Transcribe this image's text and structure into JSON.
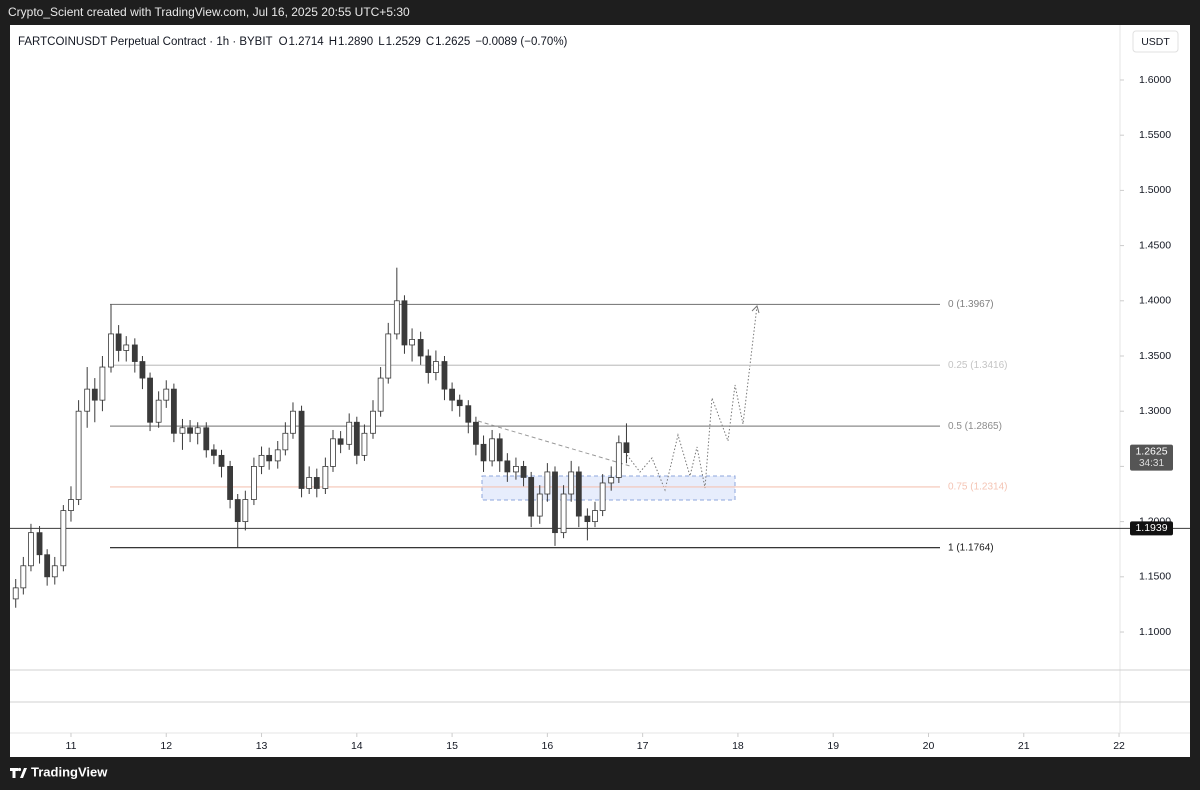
{
  "credit": "Crypto_Scient created with TradingView.com, Jul 16, 2025 20:55 UTC+5:30",
  "brand": "TradingView",
  "chart_data": {
    "type": "candlestick",
    "symbol": "FARTCOINUSDT Perpetual Contract · 1h · BYBIT",
    "header_values": [
      {
        "label": "O",
        "text": "1.2714"
      },
      {
        "label": "H",
        "text": "1.2890"
      },
      {
        "label": "L",
        "text": "1.2529"
      },
      {
        "label": "C",
        "text": "1.2625"
      }
    ],
    "change": "−0.0089 (−0.70%)",
    "currency": "USDT",
    "up_color": "#ffffff",
    "down_color": "#3a3a3a",
    "wick_color": "#3a3a3a",
    "x": [
      10.42,
      10.5,
      10.58,
      10.67,
      10.75,
      10.83,
      10.92,
      11,
      11.08,
      11.17,
      11.25,
      11.33,
      11.42,
      11.5,
      11.58,
      11.67,
      11.75,
      11.83,
      11.92,
      12,
      12.08,
      12.17,
      12.25,
      12.33,
      12.42,
      12.5,
      12.58,
      12.67,
      12.75,
      12.83,
      12.92,
      13,
      13.08,
      13.17,
      13.25,
      13.33,
      13.42,
      13.5,
      13.58,
      13.67,
      13.75,
      13.83,
      13.92,
      14,
      14.08,
      14.17,
      14.25,
      14.33,
      14.42,
      14.5,
      14.58,
      14.67,
      14.75,
      14.83,
      14.92,
      15,
      15.08,
      15.17,
      15.25,
      15.33,
      15.42,
      15.5,
      15.58,
      15.67,
      15.75,
      15.83,
      15.92,
      16,
      16.08,
      16.17,
      16.25,
      16.33,
      16.42,
      16.5,
      16.58,
      16.67,
      16.75,
      16.83
    ],
    "open": [
      1.13,
      1.14,
      1.16,
      1.19,
      1.17,
      1.15,
      1.16,
      1.21,
      1.22,
      1.3,
      1.32,
      1.31,
      1.34,
      1.37,
      1.355,
      1.36,
      1.345,
      1.33,
      1.29,
      1.31,
      1.32,
      1.28,
      1.285,
      1.28,
      1.285,
      1.265,
      1.26,
      1.25,
      1.22,
      1.2,
      1.22,
      1.25,
      1.26,
      1.255,
      1.265,
      1.28,
      1.3,
      1.23,
      1.24,
      1.23,
      1.25,
      1.275,
      1.27,
      1.29,
      1.26,
      1.28,
      1.3,
      1.33,
      1.37,
      1.4,
      1.36,
      1.365,
      1.35,
      1.335,
      1.345,
      1.32,
      1.31,
      1.305,
      1.29,
      1.27,
      1.255,
      1.275,
      1.255,
      1.245,
      1.25,
      1.24,
      1.205,
      1.225,
      1.245,
      1.19,
      1.225,
      1.245,
      1.205,
      1.2,
      1.21,
      1.235,
      1.24,
      1.2714
    ],
    "high": [
      1.148,
      1.168,
      1.198,
      1.196,
      1.175,
      1.168,
      1.215,
      1.232,
      1.31,
      1.34,
      1.33,
      1.35,
      1.3967,
      1.378,
      1.368,
      1.366,
      1.35,
      1.335,
      1.318,
      1.328,
      1.325,
      1.293,
      1.292,
      1.29,
      1.29,
      1.27,
      1.265,
      1.255,
      1.225,
      1.228,
      1.258,
      1.268,
      1.267,
      1.273,
      1.29,
      1.308,
      1.305,
      1.25,
      1.248,
      1.258,
      1.283,
      1.282,
      1.298,
      1.295,
      1.288,
      1.31,
      1.34,
      1.38,
      1.43,
      1.405,
      1.375,
      1.372,
      1.356,
      1.355,
      1.35,
      1.326,
      1.315,
      1.31,
      1.295,
      1.278,
      1.283,
      1.28,
      1.262,
      1.258,
      1.255,
      1.245,
      1.233,
      1.253,
      1.25,
      1.233,
      1.255,
      1.25,
      1.212,
      1.218,
      1.243,
      1.25,
      1.278,
      1.289
    ],
    "low": [
      1.122,
      1.134,
      1.155,
      1.162,
      1.142,
      1.143,
      1.155,
      1.2,
      1.215,
      1.285,
      1.29,
      1.3,
      1.335,
      1.345,
      1.345,
      1.335,
      1.32,
      1.282,
      1.285,
      1.303,
      1.272,
      1.265,
      1.272,
      1.27,
      1.258,
      1.252,
      1.24,
      1.212,
      1.1764,
      1.192,
      1.215,
      1.243,
      1.247,
      1.248,
      1.26,
      1.275,
      1.222,
      1.225,
      1.222,
      1.225,
      1.245,
      1.262,
      1.265,
      1.252,
      1.255,
      1.275,
      1.295,
      1.325,
      1.365,
      1.352,
      1.345,
      1.342,
      1.325,
      1.328,
      1.31,
      1.3,
      1.295,
      1.28,
      1.26,
      1.245,
      1.25,
      1.245,
      1.236,
      1.238,
      1.232,
      1.195,
      1.198,
      1.218,
      1.178,
      1.185,
      1.218,
      1.195,
      1.183,
      1.195,
      1.205,
      1.228,
      1.235,
      1.2529
    ],
    "close": [
      1.14,
      1.16,
      1.19,
      1.17,
      1.15,
      1.16,
      1.21,
      1.22,
      1.3,
      1.32,
      1.31,
      1.34,
      1.37,
      1.355,
      1.36,
      1.345,
      1.33,
      1.29,
      1.31,
      1.32,
      1.28,
      1.285,
      1.28,
      1.285,
      1.265,
      1.26,
      1.25,
      1.22,
      1.2,
      1.22,
      1.25,
      1.26,
      1.255,
      1.265,
      1.28,
      1.3,
      1.23,
      1.24,
      1.23,
      1.25,
      1.275,
      1.27,
      1.29,
      1.26,
      1.28,
      1.3,
      1.33,
      1.37,
      1.4,
      1.36,
      1.365,
      1.35,
      1.335,
      1.345,
      1.32,
      1.31,
      1.305,
      1.29,
      1.27,
      1.255,
      1.275,
      1.255,
      1.245,
      1.25,
      1.24,
      1.205,
      1.225,
      1.245,
      1.19,
      1.225,
      1.245,
      1.205,
      1.2,
      1.21,
      1.235,
      1.24,
      1.2714,
      1.2625
    ],
    "xlim": [
      10.36,
      22.01
    ],
    "xticks": [
      11,
      12,
      13,
      14,
      15,
      16,
      17,
      18,
      19,
      20,
      21,
      22
    ],
    "ylim": [
      1.0656,
      1.6498
    ],
    "yticks": [
      {
        "value": 1.1,
        "label": "1.1000"
      },
      {
        "value": 1.15,
        "label": "1.1500"
      },
      {
        "value": 1.2,
        "label": "1.2000"
      },
      {
        "value": 1.25,
        "label": "1.2500"
      },
      {
        "value": 1.3,
        "label": "1.3000"
      },
      {
        "value": 1.35,
        "label": "1.3500"
      },
      {
        "value": 1.4,
        "label": "1.4000"
      },
      {
        "value": 1.45,
        "label": "1.4500"
      },
      {
        "value": 1.5,
        "label": "1.5000"
      },
      {
        "value": 1.55,
        "label": "1.5500"
      },
      {
        "value": 1.6,
        "label": "1.6000"
      }
    ],
    "fib_levels": [
      {
        "label": "0 (1.3967)",
        "price": 1.3967,
        "color": "#808080"
      },
      {
        "label": "0.25 (1.3416)",
        "price": 1.3416,
        "color": "#c4c4c4"
      },
      {
        "label": "0.5 (1.2865)",
        "price": 1.2865,
        "color": "#8c8c8c"
      },
      {
        "label": "0.75 (1.2314)",
        "price": 1.2314,
        "color": "#f4c4b4"
      },
      {
        "label": "1 (1.1764)",
        "price": 1.1764,
        "color": "#1a1a1a"
      }
    ],
    "horizontal_line": {
      "value": 1.1939,
      "label": "1.1939"
    },
    "price_tag": {
      "value": 1.2625,
      "label": "1.2625",
      "countdown": "34:31"
    }
  }
}
